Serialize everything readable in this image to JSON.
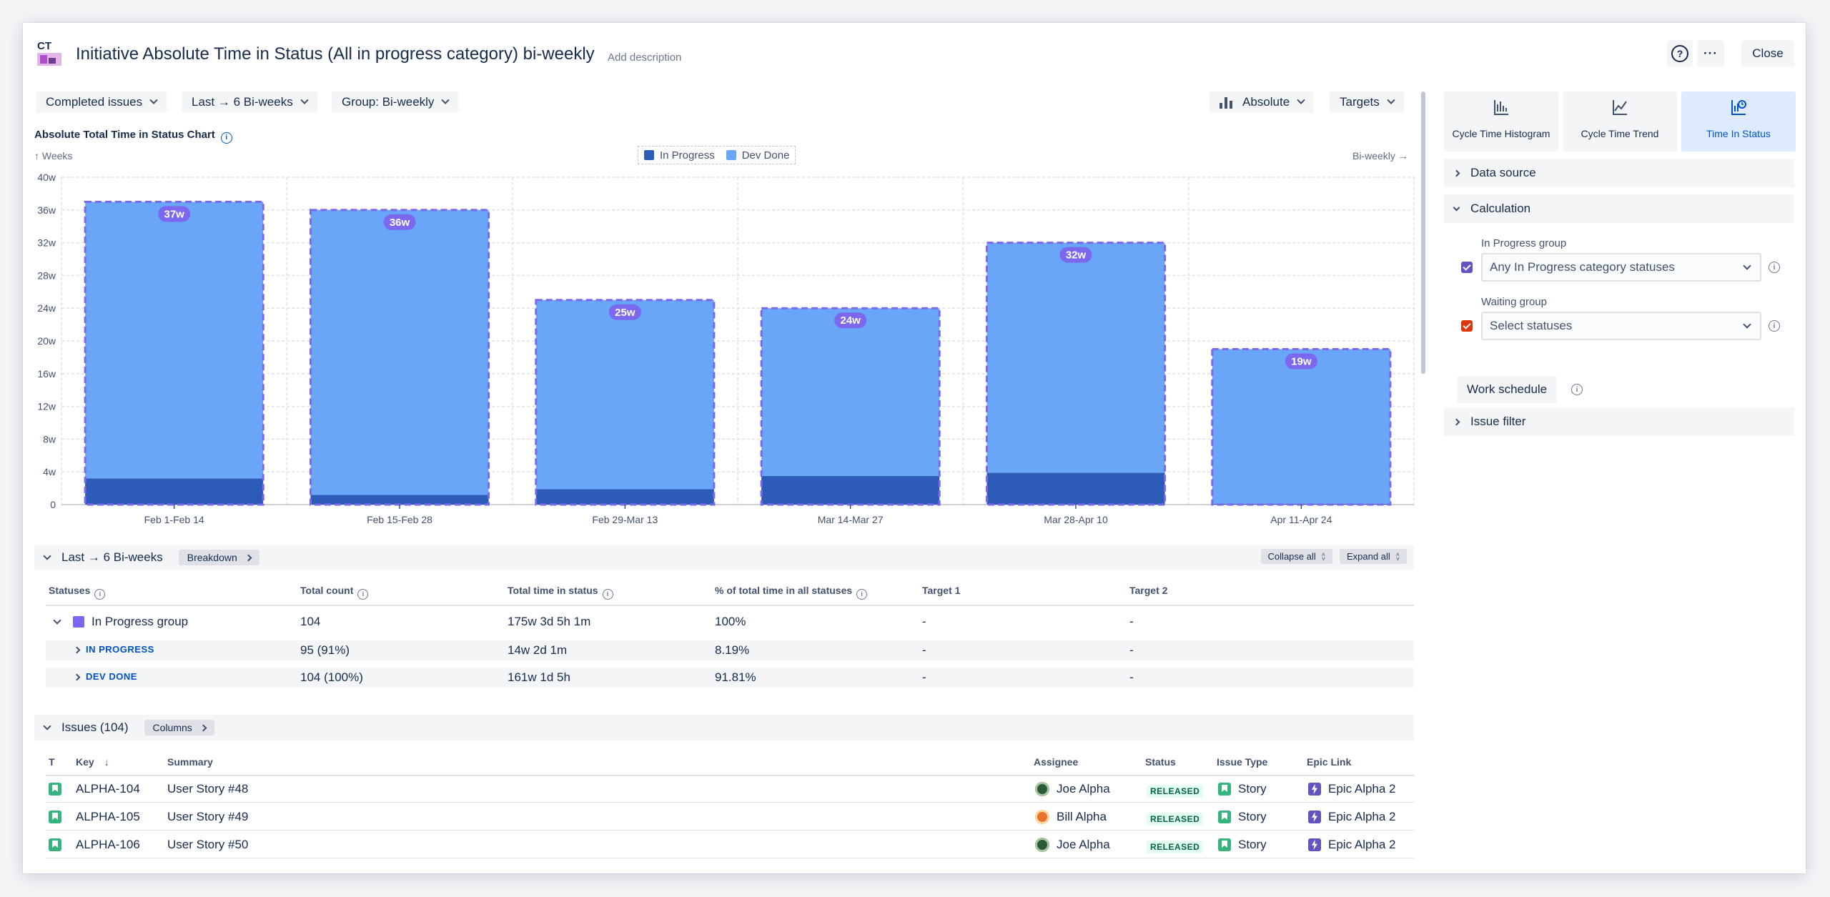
{
  "header": {
    "logo_text": "CT",
    "title": "Initiative Absolute Time in Status (All in progress category) bi-weekly",
    "add_description": "Add description",
    "help_symbol": "?",
    "more_symbol": "···",
    "close_label": "Close"
  },
  "toolbar": {
    "issues_filter": "Completed issues",
    "range": "Last → 6 Bi-weeks",
    "group": "Group: Bi-weekly",
    "mode": "Absolute",
    "targets": "Targets"
  },
  "chart": {
    "title": "Absolute Total Time in Status Chart",
    "y_axis_caption": "↑ Weeks",
    "x_axis_caption": "Bi-weekly →"
  },
  "chart_data": {
    "type": "bar",
    "stacked": true,
    "title": "Absolute Total Time in Status Chart",
    "ylabel": "Weeks",
    "xlabel": "Bi-weekly",
    "ylim": [
      0,
      40
    ],
    "yticks": [
      "0",
      "4w",
      "8w",
      "12w",
      "16w",
      "20w",
      "24w",
      "28w",
      "32w",
      "36w",
      "40w"
    ],
    "categories": [
      "Feb 1-Feb 14",
      "Feb 15-Feb 28",
      "Feb 29-Mar 13",
      "Mar 14-Mar 27",
      "Mar 28-Apr 10",
      "Apr 11-Apr 24"
    ],
    "series": [
      {
        "name": "In Progress",
        "color": "#2c5bb8",
        "values": [
          3.2,
          1.2,
          1.9,
          3.5,
          3.9,
          0.1
        ]
      },
      {
        "name": "Dev Done",
        "color": "#69a6f7",
        "values": [
          33.8,
          34.8,
          23.1,
          20.5,
          28.1,
          18.9
        ]
      }
    ],
    "totals": [
      37,
      36,
      25,
      24,
      32,
      19
    ],
    "total_labels": [
      "37w",
      "36w",
      "25w",
      "24w",
      "32w",
      "19w"
    ],
    "grid": true,
    "legend_position": "top-center"
  },
  "summary": {
    "section_title": "Last → 6 Bi-weeks",
    "breakdown_label": "Breakdown",
    "collapse_all": "Collapse all",
    "expand_all": "Expand all",
    "columns": [
      "Statuses",
      "Total count",
      "Total time in status",
      "% of total time in all statuses",
      "Target 1",
      "Target 2"
    ],
    "rows": [
      {
        "status": "In Progress group",
        "count": "104",
        "time": "175w 3d 5h 1m",
        "percent": "100%",
        "target1": "-",
        "target2": "-"
      },
      {
        "status": "IN PROGRESS",
        "count": "95 (91%)",
        "time": "14w 2d 1m",
        "percent": "8.19%",
        "target1": "-",
        "target2": "-"
      },
      {
        "status": "DEV DONE",
        "count": "104 (100%)",
        "time": "161w 1d 5h",
        "percent": "91.81%",
        "target1": "-",
        "target2": "-"
      }
    ]
  },
  "issues": {
    "section_title": "Issues (104)",
    "columns_label": "Columns",
    "columns": [
      "T",
      "Key",
      "Summary",
      "Assignee",
      "Status",
      "Issue Type",
      "Epic Link"
    ],
    "sort_arrow": "↓",
    "rows": [
      {
        "key": "ALPHA-104",
        "summary": "User Story #48",
        "assignee": "Joe Alpha",
        "avatar_color": "#2d5a3a",
        "status": "RELEASED",
        "type": "Story",
        "epic": "Epic Alpha 2"
      },
      {
        "key": "ALPHA-105",
        "summary": "User Story #49",
        "assignee": "Bill Alpha",
        "avatar_color": "#e8722c",
        "status": "RELEASED",
        "type": "Story",
        "epic": "Epic Alpha 2"
      },
      {
        "key": "ALPHA-106",
        "summary": "User Story #50",
        "assignee": "Joe Alpha",
        "avatar_color": "#2d5a3a",
        "status": "RELEASED",
        "type": "Story",
        "epic": "Epic Alpha 2"
      }
    ]
  },
  "panel": {
    "tabs": [
      {
        "label": "Cycle Time Histogram",
        "active": false
      },
      {
        "label": "Cycle Time Trend",
        "active": false
      },
      {
        "label": "Time In Status",
        "active": true
      }
    ],
    "data_source": "Data source",
    "calculation": "Calculation",
    "in_progress_group_label": "In Progress group",
    "in_progress_group_value": "Any In Progress category statuses",
    "in_progress_color": "#6554c0",
    "waiting_group_label": "Waiting group",
    "waiting_group_placeholder": "Select statuses",
    "waiting_color": "#de350b",
    "work_schedule": "Work schedule",
    "issue_filter": "Issue filter"
  }
}
